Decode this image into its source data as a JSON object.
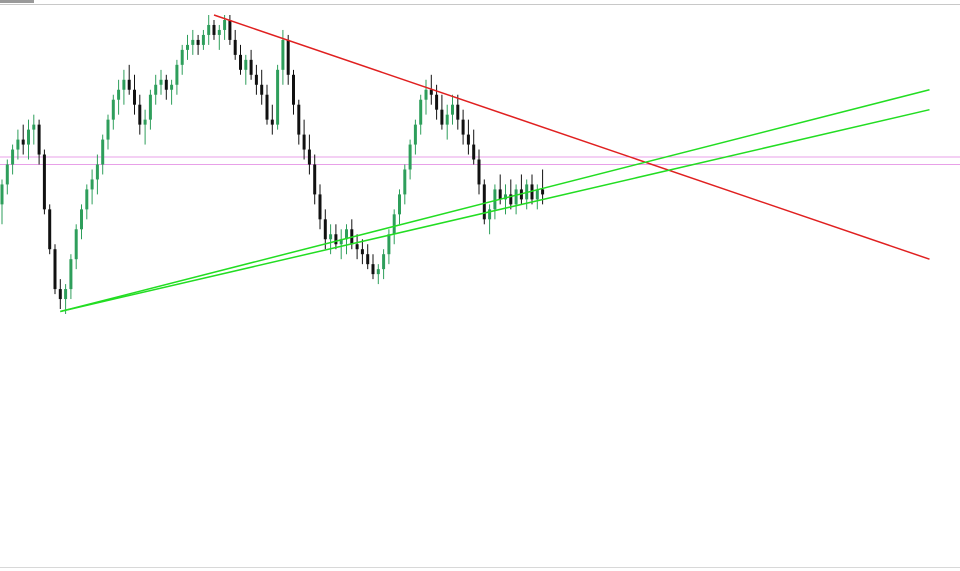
{
  "chart_data": {
    "type": "candlestick",
    "price_range": [
      0,
      100
    ],
    "candles": [
      [
        62,
        67,
        58,
        66
      ],
      [
        66,
        71,
        64,
        70
      ],
      [
        70,
        74,
        68,
        73
      ],
      [
        73,
        77,
        71,
        75
      ],
      [
        75,
        78,
        72,
        74
      ],
      [
        74,
        79,
        71,
        77
      ],
      [
        77,
        80,
        74,
        78
      ],
      [
        78,
        79,
        70,
        72
      ],
      [
        72,
        73,
        60,
        61
      ],
      [
        61,
        62,
        52,
        53
      ],
      [
        53,
        54,
        44,
        45
      ],
      [
        45,
        47,
        41,
        43
      ],
      [
        43,
        46,
        40,
        45
      ],
      [
        45,
        52,
        43,
        51
      ],
      [
        51,
        58,
        49,
        57
      ],
      [
        57,
        62,
        55,
        61
      ],
      [
        61,
        66,
        59,
        65
      ],
      [
        65,
        69,
        62,
        67
      ],
      [
        67,
        72,
        64,
        70
      ],
      [
        70,
        76,
        68,
        75
      ],
      [
        75,
        80,
        73,
        79
      ],
      [
        79,
        84,
        77,
        83
      ],
      [
        83,
        87,
        80,
        85
      ],
      [
        85,
        89,
        82,
        87
      ],
      [
        87,
        90,
        84,
        85
      ],
      [
        85,
        88,
        80,
        82
      ],
      [
        82,
        84,
        76,
        78
      ],
      [
        78,
        81,
        74,
        79
      ],
      [
        79,
        85,
        77,
        84
      ],
      [
        84,
        88,
        82,
        86
      ],
      [
        86,
        89,
        84,
        87
      ],
      [
        87,
        88,
        83,
        85
      ],
      [
        85,
        87,
        82,
        86
      ],
      [
        86,
        91,
        84,
        90
      ],
      [
        90,
        94,
        88,
        93
      ],
      [
        93,
        96,
        91,
        94
      ],
      [
        94,
        97,
        92,
        95
      ],
      [
        95,
        96,
        92,
        94
      ],
      [
        94,
        97,
        93,
        96
      ],
      [
        96,
        100,
        94,
        98
      ],
      [
        98,
        99,
        95,
        96
      ],
      [
        96,
        98,
        93,
        97
      ],
      [
        97,
        100,
        95,
        99
      ],
      [
        99,
        100,
        94,
        95
      ],
      [
        95,
        97,
        91,
        92
      ],
      [
        92,
        94,
        88,
        89
      ],
      [
        89,
        92,
        86,
        91
      ],
      [
        91,
        93,
        87,
        88
      ],
      [
        88,
        90,
        84,
        86
      ],
      [
        86,
        89,
        82,
        84
      ],
      [
        84,
        86,
        78,
        79
      ],
      [
        79,
        82,
        76,
        78
      ],
      [
        78,
        90,
        77,
        89
      ],
      [
        89,
        97,
        86,
        95
      ],
      [
        95,
        96,
        86,
        88
      ],
      [
        88,
        89,
        80,
        82
      ],
      [
        82,
        83,
        74,
        76
      ],
      [
        76,
        79,
        71,
        73
      ],
      [
        73,
        76,
        68,
        70
      ],
      [
        70,
        72,
        62,
        64
      ],
      [
        64,
        66,
        57,
        59
      ],
      [
        59,
        61,
        53,
        55
      ],
      [
        55,
        58,
        52,
        56
      ],
      [
        56,
        58,
        53,
        54
      ],
      [
        54,
        57,
        51,
        55
      ],
      [
        55,
        58,
        52,
        57
      ],
      [
        57,
        59,
        53,
        54
      ],
      [
        54,
        56,
        51,
        53
      ],
      [
        53,
        55,
        50,
        52
      ],
      [
        52,
        54,
        49,
        50
      ],
      [
        50,
        52,
        47,
        48
      ],
      [
        48,
        50,
        46,
        49
      ],
      [
        49,
        53,
        47,
        52
      ],
      [
        52,
        57,
        50,
        56
      ],
      [
        56,
        61,
        54,
        60
      ],
      [
        60,
        65,
        58,
        64
      ],
      [
        64,
        70,
        62,
        69
      ],
      [
        69,
        75,
        67,
        74
      ],
      [
        74,
        79,
        72,
        78
      ],
      [
        78,
        84,
        76,
        83
      ],
      [
        83,
        87,
        80,
        85
      ],
      [
        85,
        88,
        82,
        84
      ],
      [
        84,
        86,
        79,
        81
      ],
      [
        81,
        84,
        77,
        78
      ],
      [
        78,
        82,
        75,
        80
      ],
      [
        80,
        84,
        78,
        82
      ],
      [
        82,
        84,
        77,
        79
      ],
      [
        79,
        81,
        74,
        76
      ],
      [
        76,
        79,
        72,
        74
      ],
      [
        74,
        77,
        70,
        71
      ],
      [
        71,
        73,
        64,
        66
      ],
      [
        66,
        67,
        58,
        59
      ],
      [
        59,
        62,
        56,
        61
      ],
      [
        61,
        66,
        59,
        65
      ],
      [
        65,
        68,
        62,
        63
      ],
      [
        63,
        66,
        60,
        64
      ],
      [
        64,
        67,
        61,
        62
      ],
      [
        62,
        66,
        60,
        65
      ],
      [
        65,
        68,
        62,
        63
      ],
      [
        63,
        67,
        61,
        66
      ],
      [
        66,
        68,
        62,
        63
      ],
      [
        63,
        66,
        61,
        65
      ],
      [
        65,
        69,
        62,
        64
      ]
    ],
    "horizontal_lines": [
      {
        "value": 71.5,
        "color": "#e8a0e8"
      },
      {
        "value": 70.0,
        "color": "#e8a0e8"
      }
    ],
    "trendlines": [
      {
        "color": "#e02020",
        "from": {
          "bar": 40,
          "price": 100
        },
        "to": {
          "bar": 175,
          "price": 51
        }
      },
      {
        "color": "#22dd22",
        "from": {
          "bar": 11,
          "price": 40.5
        },
        "to": {
          "bar": 175,
          "price": 81
        }
      },
      {
        "color": "#22dd22",
        "from": {
          "bar": 11,
          "price": 40.5
        },
        "to": {
          "bar": 175,
          "price": 85
        }
      }
    ],
    "bull_color": "#2e9e5b",
    "bear_color": "#111111"
  }
}
